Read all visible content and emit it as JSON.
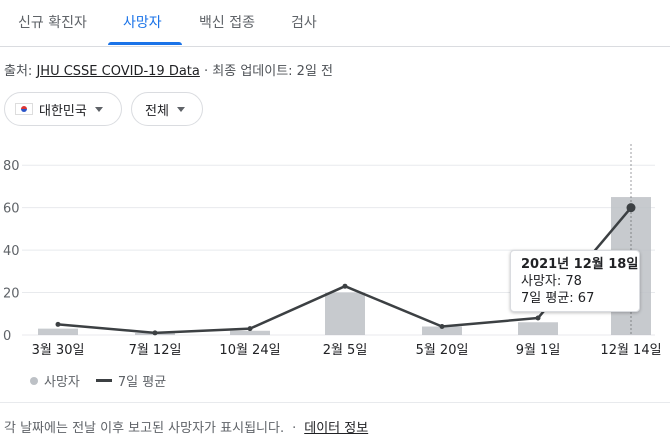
{
  "tabs": [
    {
      "label": "신규 확진자",
      "active": false
    },
    {
      "label": "사망자",
      "active": true
    },
    {
      "label": "백신 접종",
      "active": false
    },
    {
      "label": "검사",
      "active": false
    }
  ],
  "source": {
    "prefix": "출처:",
    "link": "JHU CSSE COVID-19 Data",
    "suffix": " · 최종 업데이트: 2일 전"
  },
  "filters": {
    "country": "대한민국",
    "country_flag_icon": "south-korea-flag-icon",
    "range": "전체"
  },
  "colors": {
    "accent": "#1a73e8",
    "bars": "#bdc1c6",
    "avg_line": "#3c4043",
    "grid": "#e8eaed"
  },
  "chart_data": {
    "type": "bar",
    "ylim": [
      0,
      90
    ],
    "yticks": [
      0,
      20,
      40,
      60,
      80
    ],
    "xtick_labels": [
      "3월 30일",
      "7월 12일",
      "10월 24일",
      "2월 5일",
      "5월 20일",
      "9월 1일",
      "12월 14일"
    ],
    "x": [
      "3월 30일",
      "7월 12일",
      "10월 24일",
      "2월 5일",
      "5월 20일",
      "9월 1일",
      "12월 14일"
    ],
    "series": [
      {
        "name": "사망자",
        "values": [
          3,
          1,
          2,
          20,
          4,
          6,
          65
        ]
      },
      {
        "name": "7일 평균",
        "values": [
          5,
          1,
          3,
          23,
          4,
          8,
          60
        ]
      }
    ],
    "grid": true,
    "legend": "bottom-left"
  },
  "tooltip": {
    "date": "2021년 12월 18일",
    "deaths": "사망자: 78",
    "avg": "7일 평균: 67"
  },
  "legend": {
    "bars_label": "사망자",
    "line_label": "7일 평균"
  },
  "footer": {
    "note": "각 날짜에는 전날 이후 보고된 사망자가 표시됩니다.",
    "link": "데이터 정보"
  }
}
